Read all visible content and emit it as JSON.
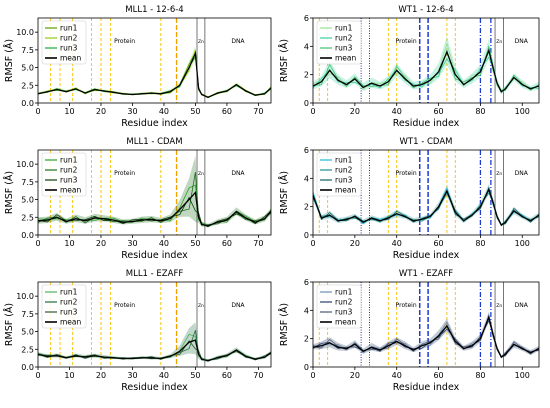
{
  "chart_data": [
    {
      "type": "line",
      "title": "MLL1 - 12-6-4",
      "xlabel": "Residue index",
      "ylabel": "RMSF (Å)",
      "xlim": [
        0,
        74
      ],
      "ylim": [
        0,
        12
      ],
      "xticks": [
        "0",
        "10",
        "20",
        "30",
        "40",
        "50",
        "60",
        "70"
      ],
      "yticks": [
        "0.0",
        "2.5",
        "5.0",
        "7.5",
        "10.0"
      ],
      "legend": [
        "run1",
        "run2",
        "run3",
        "mean"
      ],
      "legend_position": "upper-left",
      "region_labels": [
        "Protein",
        "Zn",
        "DNA"
      ],
      "colors": [
        "#5a9e00",
        "#8ccf10",
        "#1aa83c",
        "#000000"
      ],
      "x": [
        0,
        3,
        6,
        9,
        12,
        15,
        18,
        21,
        24,
        27,
        30,
        33,
        36,
        39,
        42,
        45,
        48,
        50,
        51,
        52,
        54,
        57,
        60,
        63,
        66,
        69,
        72,
        74
      ],
      "mean": [
        1.3,
        1.6,
        1.9,
        1.6,
        2.0,
        1.4,
        1.9,
        1.7,
        1.5,
        1.3,
        1.2,
        1.3,
        1.4,
        1.3,
        1.6,
        2.5,
        5.0,
        7.0,
        2.0,
        1.2,
        0.8,
        1.4,
        1.7,
        2.6,
        1.7,
        1.1,
        1.3,
        2.1
      ],
      "spread": [
        0.15,
        0.2,
        0.25,
        0.2,
        0.25,
        0.2,
        0.25,
        0.2,
        0.2,
        0.15,
        0.15,
        0.15,
        0.2,
        0.2,
        0.3,
        0.4,
        0.9,
        1.0,
        0.4,
        0.2,
        0.15,
        0.2,
        0.2,
        0.3,
        0.2,
        0.15,
        0.2,
        0.3
      ],
      "vlines": [
        {
          "x": 4,
          "style": "yellow-dashed"
        },
        {
          "x": 7,
          "style": "yellow-dashed"
        },
        {
          "x": 11,
          "style": "yellow-dashed"
        },
        {
          "x": 17,
          "style": "yellow-dashed"
        },
        {
          "x": 20,
          "style": "yellow-dashed"
        },
        {
          "x": 23,
          "style": "yellow-dashed"
        },
        {
          "x": 39,
          "style": "yellow-dashed"
        },
        {
          "x": 44,
          "style": "orange-dashed"
        },
        {
          "x": 50.5,
          "style": "gray-solid"
        },
        {
          "x": 53,
          "style": "gray-solid"
        }
      ]
    },
    {
      "type": "line",
      "title": "WT1 - 12-6-4",
      "xlabel": "Residue index",
      "ylabel": "RMSF (Å)",
      "xlim": [
        0,
        108
      ],
      "ylim": [
        0,
        6
      ],
      "xticks": [
        "0",
        "20",
        "40",
        "60",
        "80",
        "100"
      ],
      "yticks": [
        "0",
        "2",
        "4",
        "6"
      ],
      "legend": [
        "run1",
        "run2",
        "run3",
        "mean"
      ],
      "legend_position": "upper-left",
      "region_labels": [
        "Protein",
        "Zn",
        "DNA"
      ],
      "colors": [
        "#98e090",
        "#3ad0a0",
        "#40c070",
        "#000000"
      ],
      "x": [
        0,
        4,
        8,
        12,
        16,
        20,
        24,
        28,
        32,
        36,
        40,
        44,
        48,
        52,
        56,
        60,
        64,
        68,
        72,
        76,
        80,
        84,
        86,
        88,
        90,
        92,
        96,
        100,
        104,
        108
      ],
      "mean": [
        1.2,
        1.5,
        2.3,
        1.6,
        1.3,
        1.7,
        1.1,
        1.4,
        1.2,
        1.5,
        2.3,
        1.7,
        1.2,
        1.3,
        1.6,
        2.2,
        3.6,
        2.0,
        1.3,
        1.7,
        2.2,
        3.7,
        2.5,
        1.4,
        0.8,
        1.0,
        1.8,
        1.3,
        1.0,
        1.2
      ],
      "spread": [
        0.3,
        0.4,
        0.7,
        0.4,
        0.3,
        0.4,
        0.3,
        0.4,
        0.3,
        0.4,
        0.5,
        0.4,
        0.3,
        0.3,
        0.4,
        0.6,
        1.1,
        0.6,
        0.3,
        0.4,
        0.5,
        0.8,
        0.5,
        0.3,
        0.2,
        0.2,
        0.3,
        0.3,
        0.2,
        0.3
      ],
      "vlines": [
        {
          "x": 3,
          "style": "yellow-dashed"
        },
        {
          "x": 7,
          "style": "yellow-dashed"
        },
        {
          "x": 23,
          "style": "blue-dotted"
        },
        {
          "x": 27,
          "style": "blue-dotted"
        },
        {
          "x": 36,
          "style": "yellow-dashed"
        },
        {
          "x": 40,
          "style": "yellow-dashed"
        },
        {
          "x": 51,
          "style": "blue-dashed"
        },
        {
          "x": 55,
          "style": "blue-dashed"
        },
        {
          "x": 64,
          "style": "yellow-dashed"
        },
        {
          "x": 68,
          "style": "yellow-dashed"
        },
        {
          "x": 80,
          "style": "blue-dashdot"
        },
        {
          "x": 85,
          "style": "blue-dashdot"
        },
        {
          "x": 87,
          "style": "gray-solid"
        },
        {
          "x": 91,
          "style": "gray-solid"
        }
      ]
    },
    {
      "type": "line",
      "title": "MLL1 - CDAM",
      "xlabel": "Residue index",
      "ylabel": "RMSF (Å)",
      "xlim": [
        0,
        74
      ],
      "ylim": [
        0,
        12
      ],
      "xticks": [
        "0",
        "10",
        "20",
        "30",
        "40",
        "50",
        "60",
        "70"
      ],
      "yticks": [
        "0.0",
        "2.5",
        "5.0",
        "7.5",
        "10.0"
      ],
      "legend": [
        "run1",
        "run2",
        "run3",
        "mean"
      ],
      "legend_position": "upper-left",
      "region_labels": [
        "Protein",
        "Zn",
        "DNA"
      ],
      "colors": [
        "#2ca02c",
        "#1a6e1a",
        "#0b3d0b",
        "#000000"
      ],
      "x": [
        0,
        3,
        6,
        9,
        12,
        15,
        18,
        21,
        24,
        27,
        30,
        33,
        36,
        39,
        42,
        45,
        48,
        50,
        51,
        52,
        54,
        57,
        60,
        63,
        66,
        69,
        72,
        74
      ],
      "mean": [
        2.0,
        2.1,
        2.5,
        1.9,
        2.3,
        2.0,
        2.4,
        2.3,
        2.1,
        1.8,
        1.9,
        2.1,
        2.2,
        2.0,
        2.3,
        3.6,
        5.0,
        6.0,
        2.5,
        1.5,
        1.3,
        1.8,
        2.1,
        3.3,
        2.4,
        1.8,
        2.3,
        3.3
      ],
      "spread": [
        0.5,
        0.5,
        0.6,
        0.4,
        0.6,
        0.5,
        0.6,
        0.5,
        0.5,
        0.4,
        0.4,
        0.5,
        0.5,
        0.4,
        0.6,
        1.3,
        3.0,
        5.2,
        1.0,
        0.4,
        0.3,
        0.4,
        0.5,
        0.6,
        0.5,
        0.4,
        0.5,
        0.5
      ],
      "vlines": [
        {
          "x": 4,
          "style": "yellow-dashed"
        },
        {
          "x": 7,
          "style": "yellow-dashed"
        },
        {
          "x": 11,
          "style": "yellow-dashed"
        },
        {
          "x": 17,
          "style": "yellow-dashed"
        },
        {
          "x": 20,
          "style": "yellow-dashed"
        },
        {
          "x": 23,
          "style": "yellow-dashed"
        },
        {
          "x": 39,
          "style": "yellow-dashed"
        },
        {
          "x": 44,
          "style": "orange-dashed"
        },
        {
          "x": 50.5,
          "style": "gray-solid"
        },
        {
          "x": 53,
          "style": "gray-solid"
        }
      ]
    },
    {
      "type": "line",
      "title": "WT1 - CDAM",
      "xlabel": "Residue index",
      "ylabel": "RMSF (Å)",
      "xlim": [
        0,
        108
      ],
      "ylim": [
        0,
        6
      ],
      "xticks": [
        "0",
        "20",
        "40",
        "60",
        "80",
        "100"
      ],
      "yticks": [
        "0",
        "2",
        "4",
        "6"
      ],
      "legend": [
        "run1",
        "run2",
        "run3",
        "mean"
      ],
      "legend_position": "upper-left",
      "region_labels": [
        "Protein",
        "Zn",
        "DNA"
      ],
      "colors": [
        "#22b8d8",
        "#1a9090",
        "#106060",
        "#000000"
      ],
      "x": [
        0,
        4,
        8,
        12,
        16,
        20,
        24,
        28,
        32,
        36,
        40,
        44,
        48,
        52,
        56,
        60,
        64,
        68,
        72,
        76,
        80,
        84,
        86,
        88,
        90,
        92,
        96,
        100,
        104,
        108
      ],
      "mean": [
        2.8,
        1.2,
        1.4,
        1.0,
        1.1,
        1.3,
        0.9,
        1.2,
        1.0,
        1.2,
        1.5,
        1.3,
        1.0,
        1.1,
        1.3,
        2.0,
        3.1,
        1.6,
        1.0,
        1.4,
        2.0,
        3.2,
        2.3,
        1.3,
        0.7,
        0.9,
        1.7,
        1.3,
        1.0,
        1.4
      ],
      "spread": [
        0.4,
        0.2,
        0.3,
        0.2,
        0.2,
        0.2,
        0.2,
        0.2,
        0.2,
        0.2,
        0.3,
        0.2,
        0.2,
        0.2,
        0.2,
        0.3,
        0.4,
        0.3,
        0.2,
        0.2,
        0.3,
        0.4,
        0.3,
        0.2,
        0.1,
        0.2,
        0.3,
        0.2,
        0.2,
        0.2
      ],
      "vlines": [
        {
          "x": 3,
          "style": "yellow-dashed"
        },
        {
          "x": 7,
          "style": "yellow-dashed"
        },
        {
          "x": 23,
          "style": "blue-dotted"
        },
        {
          "x": 27,
          "style": "blue-dotted"
        },
        {
          "x": 36,
          "style": "yellow-dashed"
        },
        {
          "x": 40,
          "style": "yellow-dashed"
        },
        {
          "x": 51,
          "style": "blue-dashed"
        },
        {
          "x": 55,
          "style": "blue-dashed"
        },
        {
          "x": 64,
          "style": "yellow-dashed"
        },
        {
          "x": 68,
          "style": "yellow-dashed"
        },
        {
          "x": 80,
          "style": "blue-dashdot"
        },
        {
          "x": 85,
          "style": "blue-dashdot"
        },
        {
          "x": 87,
          "style": "gray-solid"
        },
        {
          "x": 91,
          "style": "gray-solid"
        }
      ]
    },
    {
      "type": "line",
      "title": "MLL1 - EZAFF",
      "xlabel": "Residue index",
      "ylabel": "RMSF (Å)",
      "xlim": [
        0,
        74
      ],
      "ylim": [
        0,
        12
      ],
      "xticks": [
        "0",
        "10",
        "20",
        "30",
        "40",
        "50",
        "60",
        "70"
      ],
      "yticks": [
        "0.0",
        "2.5",
        "5.0",
        "7.5",
        "10.0"
      ],
      "legend": [
        "run1",
        "run2",
        "run3",
        "mean"
      ],
      "legend_position": "upper-left",
      "region_labels": [
        "Protein",
        "Zn",
        "DNA"
      ],
      "colors": [
        "#50b060",
        "#1e6e3c",
        "#2e5a2e",
        "#000000"
      ],
      "x": [
        0,
        3,
        6,
        9,
        12,
        15,
        18,
        21,
        24,
        27,
        30,
        33,
        36,
        39,
        42,
        45,
        48,
        50,
        51,
        52,
        54,
        57,
        60,
        63,
        66,
        69,
        72,
        74
      ],
      "mean": [
        1.8,
        1.5,
        1.6,
        1.3,
        1.6,
        1.4,
        1.6,
        1.4,
        1.3,
        1.2,
        1.2,
        1.3,
        1.3,
        1.2,
        1.5,
        2.2,
        3.5,
        3.8,
        1.8,
        1.1,
        0.9,
        1.3,
        1.6,
        2.4,
        1.5,
        1.1,
        1.4,
        2.0
      ],
      "spread": [
        0.3,
        0.3,
        0.3,
        0.2,
        0.3,
        0.3,
        0.3,
        0.3,
        0.2,
        0.2,
        0.2,
        0.2,
        0.3,
        0.2,
        0.3,
        0.8,
        2.0,
        2.5,
        0.8,
        0.3,
        0.2,
        0.3,
        0.3,
        0.4,
        0.3,
        0.2,
        0.3,
        0.3
      ],
      "vlines": [
        {
          "x": 4,
          "style": "yellow-dashed"
        },
        {
          "x": 7,
          "style": "yellow-dashed"
        },
        {
          "x": 11,
          "style": "yellow-dashed"
        },
        {
          "x": 17,
          "style": "yellow-dashed"
        },
        {
          "x": 20,
          "style": "yellow-dashed"
        },
        {
          "x": 23,
          "style": "yellow-dashed"
        },
        {
          "x": 39,
          "style": "yellow-dashed"
        },
        {
          "x": 44,
          "style": "orange-dashed"
        },
        {
          "x": 50.5,
          "style": "gray-solid"
        },
        {
          "x": 53,
          "style": "gray-solid"
        }
      ]
    },
    {
      "type": "line",
      "title": "WT1 - EZAFF",
      "xlabel": "Residue index",
      "ylabel": "RMSF (Å)",
      "xlim": [
        0,
        108
      ],
      "ylim": [
        0,
        6
      ],
      "xticks": [
        "0",
        "20",
        "40",
        "60",
        "80",
        "100"
      ],
      "yticks": [
        "0",
        "2",
        "4",
        "6"
      ],
      "legend": [
        "run1",
        "run2",
        "run3",
        "mean"
      ],
      "legend_position": "upper-left",
      "region_labels": [
        "Protein",
        "Zn",
        "DNA"
      ],
      "colors": [
        "#6e8fb0",
        "#2b3f6a",
        "#4a5a74",
        "#000000"
      ],
      "x": [
        0,
        4,
        8,
        12,
        16,
        20,
        24,
        28,
        32,
        36,
        40,
        44,
        48,
        52,
        56,
        60,
        64,
        68,
        72,
        76,
        80,
        84,
        86,
        88,
        90,
        92,
        96,
        100,
        104,
        108
      ],
      "mean": [
        1.4,
        1.5,
        1.7,
        1.4,
        1.3,
        1.6,
        1.1,
        1.4,
        1.2,
        1.5,
        1.8,
        1.5,
        1.2,
        1.5,
        1.7,
        2.2,
        2.9,
        1.8,
        1.3,
        1.5,
        2.0,
        3.5,
        2.3,
        1.3,
        0.7,
        0.9,
        1.6,
        1.3,
        1.0,
        1.3
      ],
      "spread": [
        0.2,
        0.3,
        0.4,
        0.3,
        0.2,
        0.3,
        0.2,
        0.3,
        0.2,
        0.3,
        0.3,
        0.3,
        0.2,
        0.3,
        0.3,
        0.4,
        0.5,
        0.3,
        0.2,
        0.3,
        0.3,
        0.4,
        0.3,
        0.2,
        0.1,
        0.2,
        0.3,
        0.2,
        0.2,
        0.2
      ],
      "vlines": [
        {
          "x": 3,
          "style": "yellow-dashed"
        },
        {
          "x": 7,
          "style": "yellow-dashed"
        },
        {
          "x": 23,
          "style": "blue-dotted"
        },
        {
          "x": 27,
          "style": "blue-dotted"
        },
        {
          "x": 36,
          "style": "yellow-dashed"
        },
        {
          "x": 40,
          "style": "yellow-dashed"
        },
        {
          "x": 51,
          "style": "blue-dashed"
        },
        {
          "x": 55,
          "style": "blue-dashed"
        },
        {
          "x": 64,
          "style": "yellow-dashed"
        },
        {
          "x": 68,
          "style": "yellow-dashed"
        },
        {
          "x": 80,
          "style": "blue-dashdot"
        },
        {
          "x": 85,
          "style": "blue-dashdot"
        },
        {
          "x": 87,
          "style": "gray-solid"
        },
        {
          "x": 91,
          "style": "gray-solid"
        }
      ]
    }
  ]
}
